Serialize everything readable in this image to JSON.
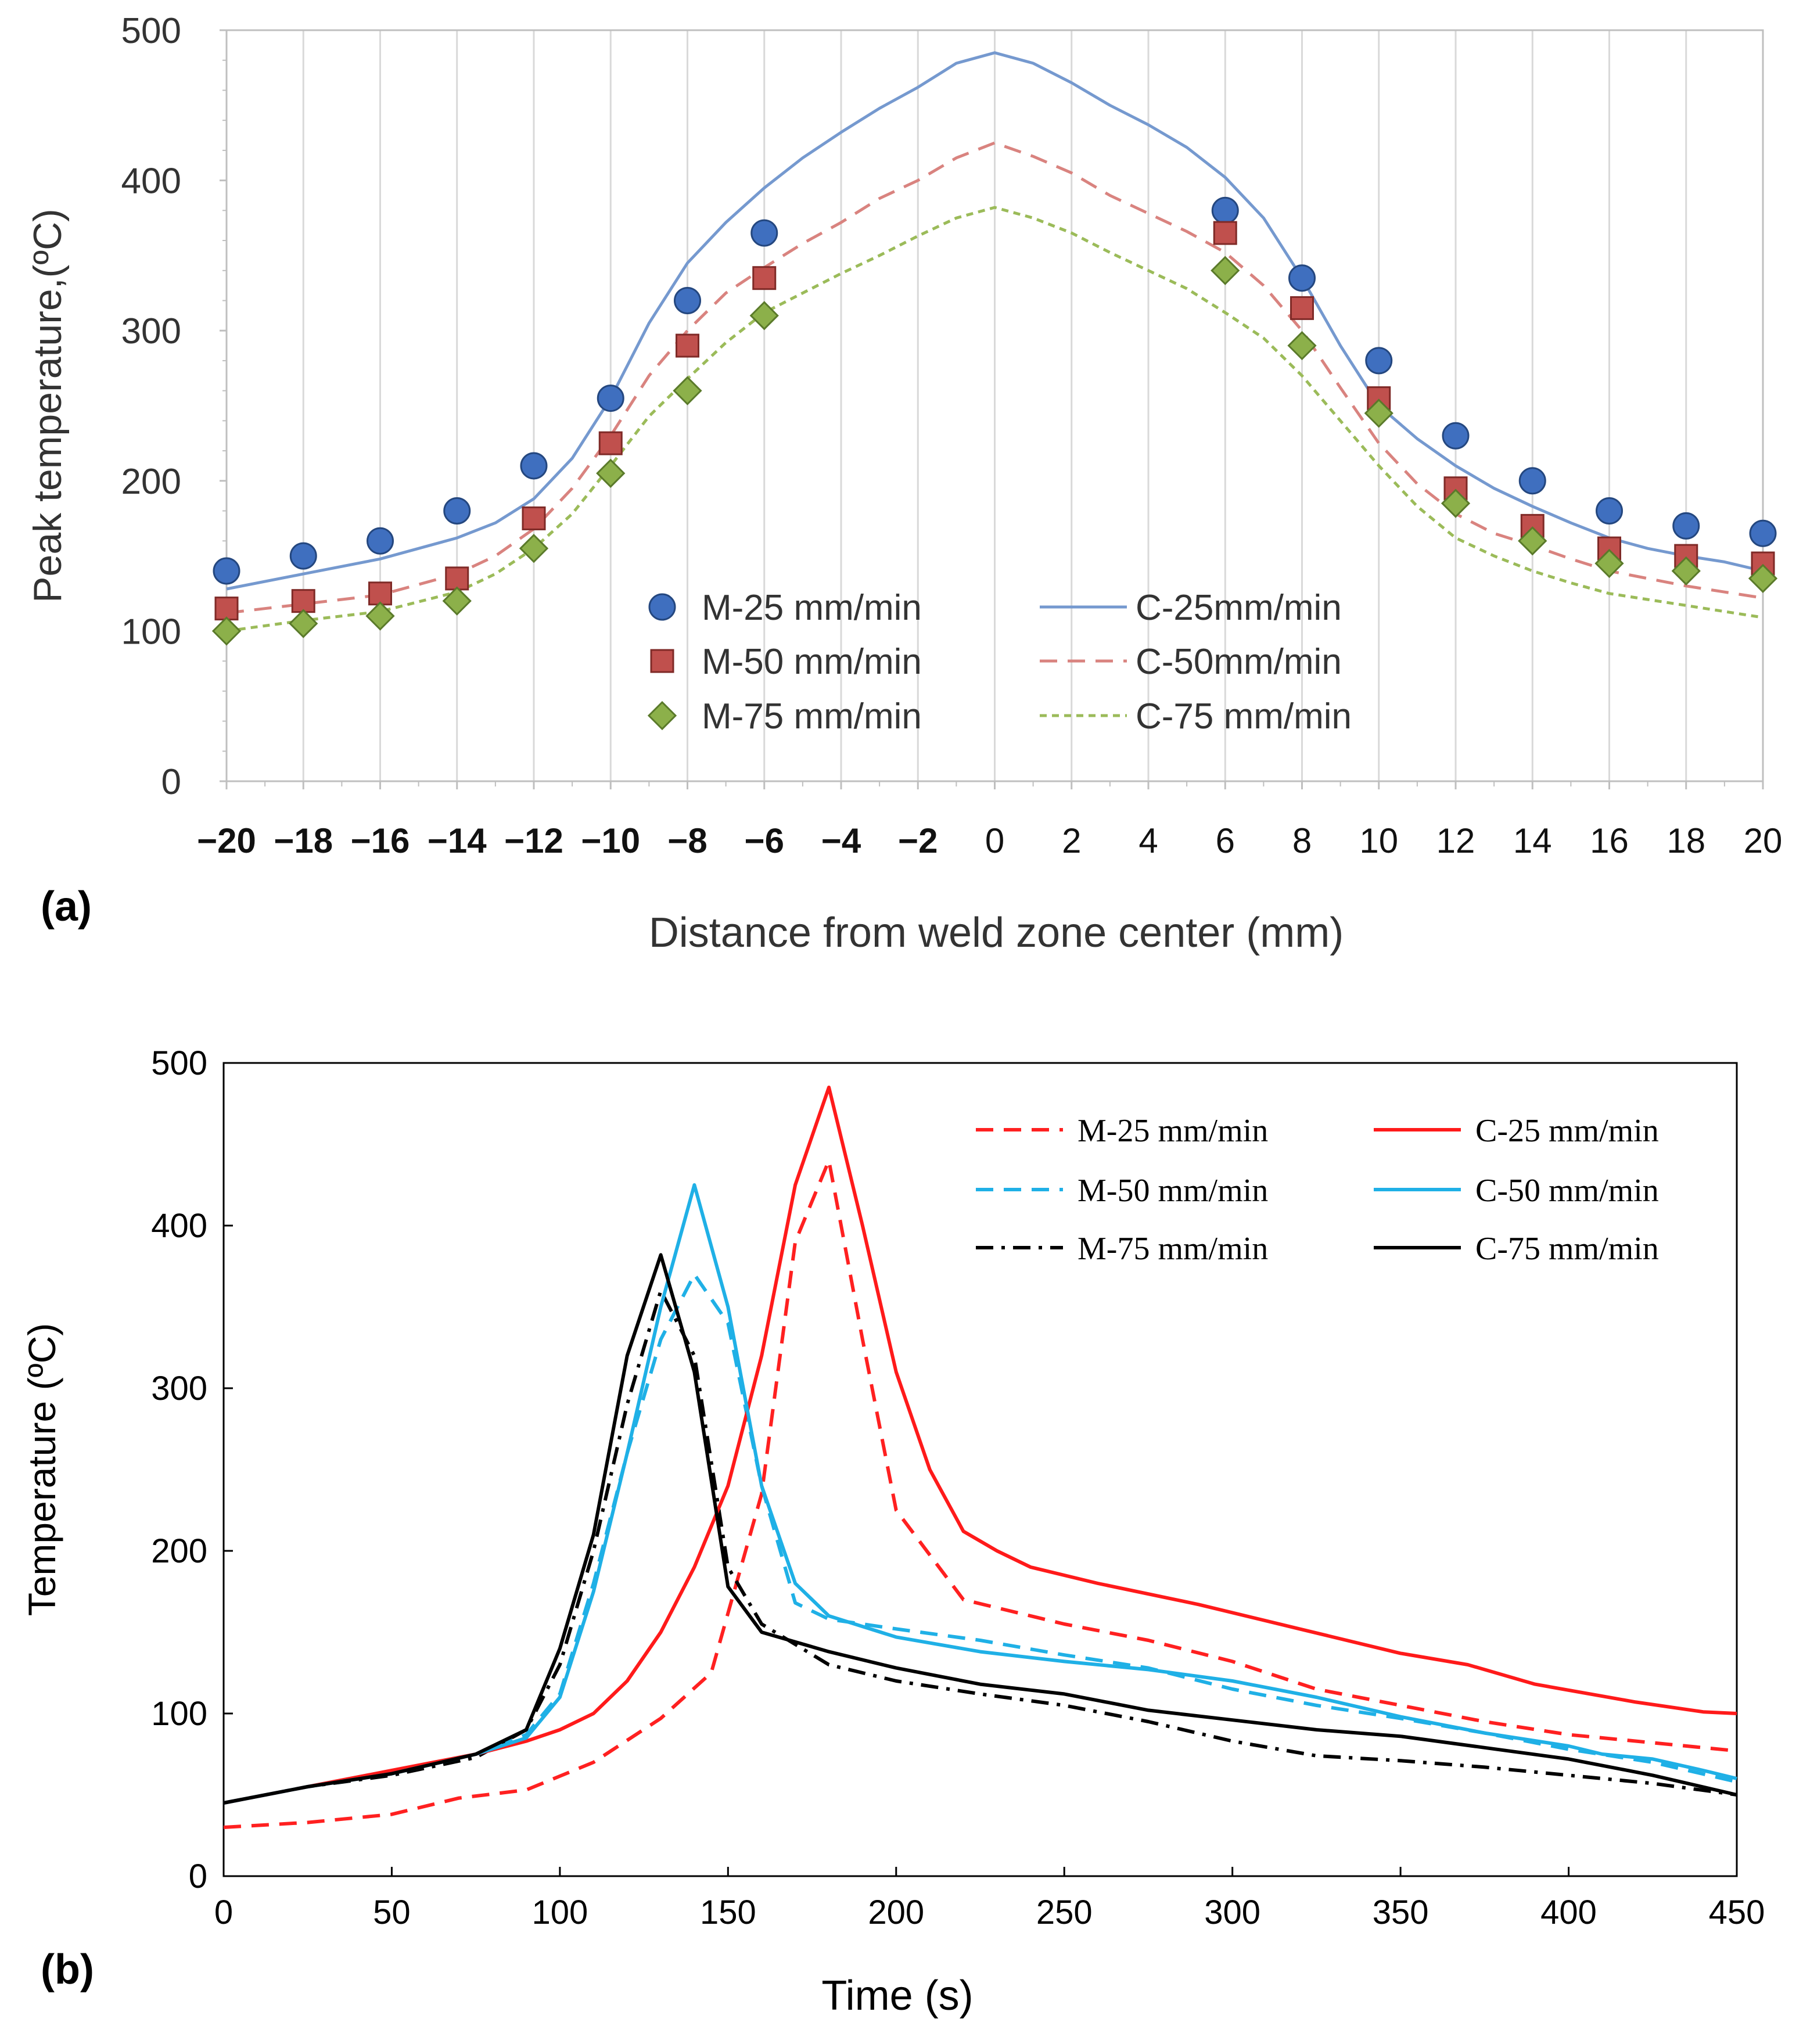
{
  "panels": {
    "a": {
      "label": "(a)"
    },
    "b": {
      "label": "(b)"
    }
  },
  "chart_data": [
    {
      "type": "line",
      "panel": "(a)",
      "xlabel": "Distance from weld zone center (mm)",
      "ylabel": "Peak temperature,(ºC)",
      "xlim": [
        -20,
        20
      ],
      "ylim": [
        0,
        500
      ],
      "x_ticks": [
        -20,
        -18,
        -16,
        -14,
        -12,
        -10,
        -8,
        -6,
        -4,
        -2,
        0,
        2,
        4,
        6,
        8,
        10,
        12,
        14,
        16,
        18,
        20
      ],
      "x_tick_labels": [
        "−20",
        "−18",
        "−16",
        "−14",
        "−12",
        "−10",
        "−8",
        "−6",
        "−4",
        "−2",
        "0",
        "2",
        "4",
        "6",
        "8",
        "10",
        "12",
        "14",
        "16",
        "18",
        "20"
      ],
      "y_ticks": [
        0,
        100,
        200,
        300,
        400,
        500
      ],
      "grid": "vertical",
      "legend_position": "lower-center",
      "series": [
        {
          "name": "M-25 mm/min",
          "kind": "marker",
          "marker": "circle",
          "color": "#3f6fbf",
          "x": [
            -20,
            -18,
            -16,
            -14,
            -12,
            -10,
            -8,
            -6,
            6,
            8,
            10,
            12,
            14,
            16,
            18,
            20
          ],
          "y": [
            140,
            150,
            160,
            180,
            210,
            255,
            320,
            365,
            380,
            335,
            280,
            230,
            200,
            180,
            170,
            165
          ]
        },
        {
          "name": "M-50 mm/min",
          "kind": "marker",
          "marker": "square",
          "color": "#c0504d",
          "x": [
            -20,
            -18,
            -16,
            -14,
            -12,
            -10,
            -8,
            -6,
            6,
            8,
            10,
            12,
            14,
            16,
            18,
            20
          ],
          "y": [
            115,
            120,
            125,
            135,
            175,
            225,
            290,
            335,
            365,
            315,
            255,
            195,
            170,
            155,
            150,
            145
          ]
        },
        {
          "name": "M-75 mm/min",
          "kind": "marker",
          "marker": "diamond",
          "color": "#8cb04a",
          "x": [
            -20,
            -18,
            -16,
            -14,
            -12,
            -10,
            -8,
            -6,
            6,
            8,
            10,
            12,
            14,
            16,
            18,
            20
          ],
          "y": [
            100,
            105,
            110,
            120,
            155,
            205,
            260,
            310,
            340,
            290,
            245,
            185,
            160,
            145,
            140,
            135
          ]
        },
        {
          "name": "C-25mm/min",
          "kind": "line",
          "dash": "solid",
          "color": "#7599cf",
          "x": [
            -20,
            -18,
            -16,
            -14,
            -13,
            -12,
            -11,
            -10,
            -9,
            -8,
            -7,
            -6,
            -5,
            -4,
            -3,
            -2,
            -1,
            0,
            1,
            2,
            3,
            4,
            5,
            6,
            7,
            8,
            9,
            10,
            11,
            12,
            13,
            14,
            15,
            16,
            17,
            18,
            19,
            20
          ],
          "y": [
            128,
            138,
            148,
            162,
            172,
            188,
            215,
            255,
            305,
            345,
            372,
            395,
            415,
            432,
            448,
            462,
            478,
            485,
            478,
            465,
            450,
            437,
            422,
            402,
            375,
            335,
            290,
            250,
            228,
            210,
            195,
            183,
            172,
            162,
            155,
            150,
            146,
            140
          ]
        },
        {
          "name": "C-50mm/min",
          "kind": "line",
          "dash": "dashed",
          "color": "#d9837f",
          "x": [
            -20,
            -18,
            -16,
            -14,
            -13,
            -12,
            -11,
            -10,
            -9,
            -8,
            -7,
            -6,
            -5,
            -4,
            -3,
            -2,
            -1,
            0,
            1,
            2,
            3,
            4,
            5,
            6,
            7,
            8,
            9,
            10,
            11,
            12,
            13,
            14,
            15,
            16,
            17,
            18,
            19,
            20
          ],
          "y": [
            112,
            118,
            124,
            138,
            150,
            168,
            195,
            230,
            270,
            300,
            325,
            342,
            358,
            372,
            388,
            400,
            415,
            425,
            416,
            405,
            390,
            378,
            366,
            352,
            330,
            300,
            262,
            225,
            198,
            178,
            165,
            157,
            148,
            140,
            135,
            130,
            126,
            122
          ]
        },
        {
          "name": "C-75 mm/min",
          "kind": "line",
          "dash": "dotted",
          "color": "#9bbb59",
          "x": [
            -20,
            -18,
            -16,
            -14,
            -13,
            -12,
            -11,
            -10,
            -9,
            -8,
            -7,
            -6,
            -5,
            -4,
            -3,
            -2,
            -1,
            0,
            1,
            2,
            3,
            4,
            5,
            6,
            7,
            8,
            9,
            10,
            11,
            12,
            13,
            14,
            15,
            16,
            17,
            18,
            19,
            20
          ],
          "y": [
            100,
            107,
            113,
            126,
            138,
            155,
            178,
            210,
            243,
            268,
            292,
            312,
            325,
            338,
            350,
            363,
            375,
            382,
            375,
            365,
            352,
            340,
            328,
            312,
            295,
            270,
            240,
            210,
            183,
            162,
            150,
            140,
            132,
            125,
            121,
            117,
            113,
            109
          ]
        }
      ]
    },
    {
      "type": "line",
      "panel": "(b)",
      "xlabel": "Time (s)",
      "ylabel": "Temperature  (ºC)",
      "xlim": [
        0,
        450
      ],
      "ylim": [
        0,
        500
      ],
      "x_ticks": [
        0,
        50,
        100,
        150,
        200,
        250,
        300,
        350,
        400,
        450
      ],
      "y_ticks": [
        0,
        100,
        200,
        300,
        400,
        500
      ],
      "grid": false,
      "legend_position": "top-right",
      "series": [
        {
          "name": "M-25 mm/min",
          "dash": "dashed",
          "color": "#ff2020",
          "x": [
            0,
            25,
            50,
            70,
            90,
            110,
            130,
            145,
            160,
            170,
            180,
            190,
            200,
            220,
            250,
            275,
            300,
            325,
            350,
            375,
            400,
            425,
            450
          ],
          "y": [
            30,
            33,
            38,
            48,
            53,
            70,
            97,
            125,
            235,
            390,
            440,
            330,
            225,
            170,
            155,
            145,
            132,
            115,
            105,
            95,
            87,
            82,
            77
          ]
        },
        {
          "name": "M-50 mm/min",
          "dash": "dashed",
          "color": "#1fb0e6",
          "x": [
            0,
            25,
            50,
            75,
            90,
            100,
            110,
            120,
            130,
            140,
            150,
            160,
            170,
            180,
            200,
            225,
            250,
            275,
            300,
            325,
            350,
            375,
            400,
            425,
            450
          ],
          "y": [
            45,
            55,
            63,
            75,
            87,
            112,
            180,
            260,
            330,
            370,
            340,
            240,
            168,
            158,
            152,
            145,
            136,
            128,
            115,
            105,
            97,
            88,
            78,
            70,
            58
          ]
        },
        {
          "name": "M-75 mm/min",
          "dash": "dashdot",
          "color": "#000000",
          "x": [
            0,
            25,
            50,
            75,
            90,
            100,
            110,
            120,
            130,
            140,
            150,
            160,
            180,
            200,
            225,
            250,
            275,
            300,
            325,
            350,
            375,
            400,
            425,
            450
          ],
          "y": [
            45,
            55,
            62,
            73,
            90,
            130,
            200,
            290,
            360,
            320,
            190,
            155,
            130,
            120,
            112,
            105,
            95,
            83,
            74,
            71,
            67,
            62,
            57,
            50
          ]
        },
        {
          "name": "C-25 mm/min",
          "dash": "solid",
          "color": "#ff1a1a",
          "x": [
            0,
            25,
            50,
            75,
            90,
            100,
            110,
            120,
            130,
            140,
            150,
            160,
            170,
            180,
            190,
            200,
            210,
            220,
            230,
            240,
            260,
            290,
            320,
            350,
            370,
            390,
            420,
            440,
            450
          ],
          "y": [
            45,
            55,
            65,
            75,
            83,
            90,
            100,
            120,
            150,
            190,
            240,
            320,
            425,
            485,
            400,
            310,
            250,
            212,
            200,
            190,
            180,
            167,
            152,
            137,
            130,
            118,
            107,
            101,
            100
          ]
        },
        {
          "name": "C-50 mm/min",
          "dash": "solid",
          "color": "#1fb0e6",
          "x": [
            0,
            25,
            50,
            75,
            90,
            100,
            110,
            120,
            130,
            140,
            150,
            160,
            170,
            180,
            200,
            225,
            250,
            275,
            300,
            325,
            350,
            375,
            400,
            410,
            425,
            440,
            450
          ],
          "y": [
            45,
            55,
            63,
            75,
            85,
            110,
            175,
            260,
            350,
            425,
            350,
            240,
            180,
            160,
            147,
            138,
            132,
            127,
            120,
            110,
            98,
            88,
            80,
            75,
            72,
            65,
            60
          ]
        },
        {
          "name": "C-75 mm/min",
          "dash": "solid",
          "color": "#000000",
          "x": [
            0,
            25,
            50,
            75,
            90,
            100,
            110,
            120,
            130,
            140,
            150,
            160,
            180,
            200,
            225,
            250,
            275,
            300,
            325,
            350,
            375,
            400,
            425,
            450
          ],
          "y": [
            45,
            55,
            63,
            75,
            90,
            140,
            210,
            320,
            382,
            310,
            178,
            150,
            138,
            128,
            118,
            112,
            102,
            96,
            90,
            86,
            79,
            72,
            62,
            50
          ]
        }
      ]
    }
  ]
}
